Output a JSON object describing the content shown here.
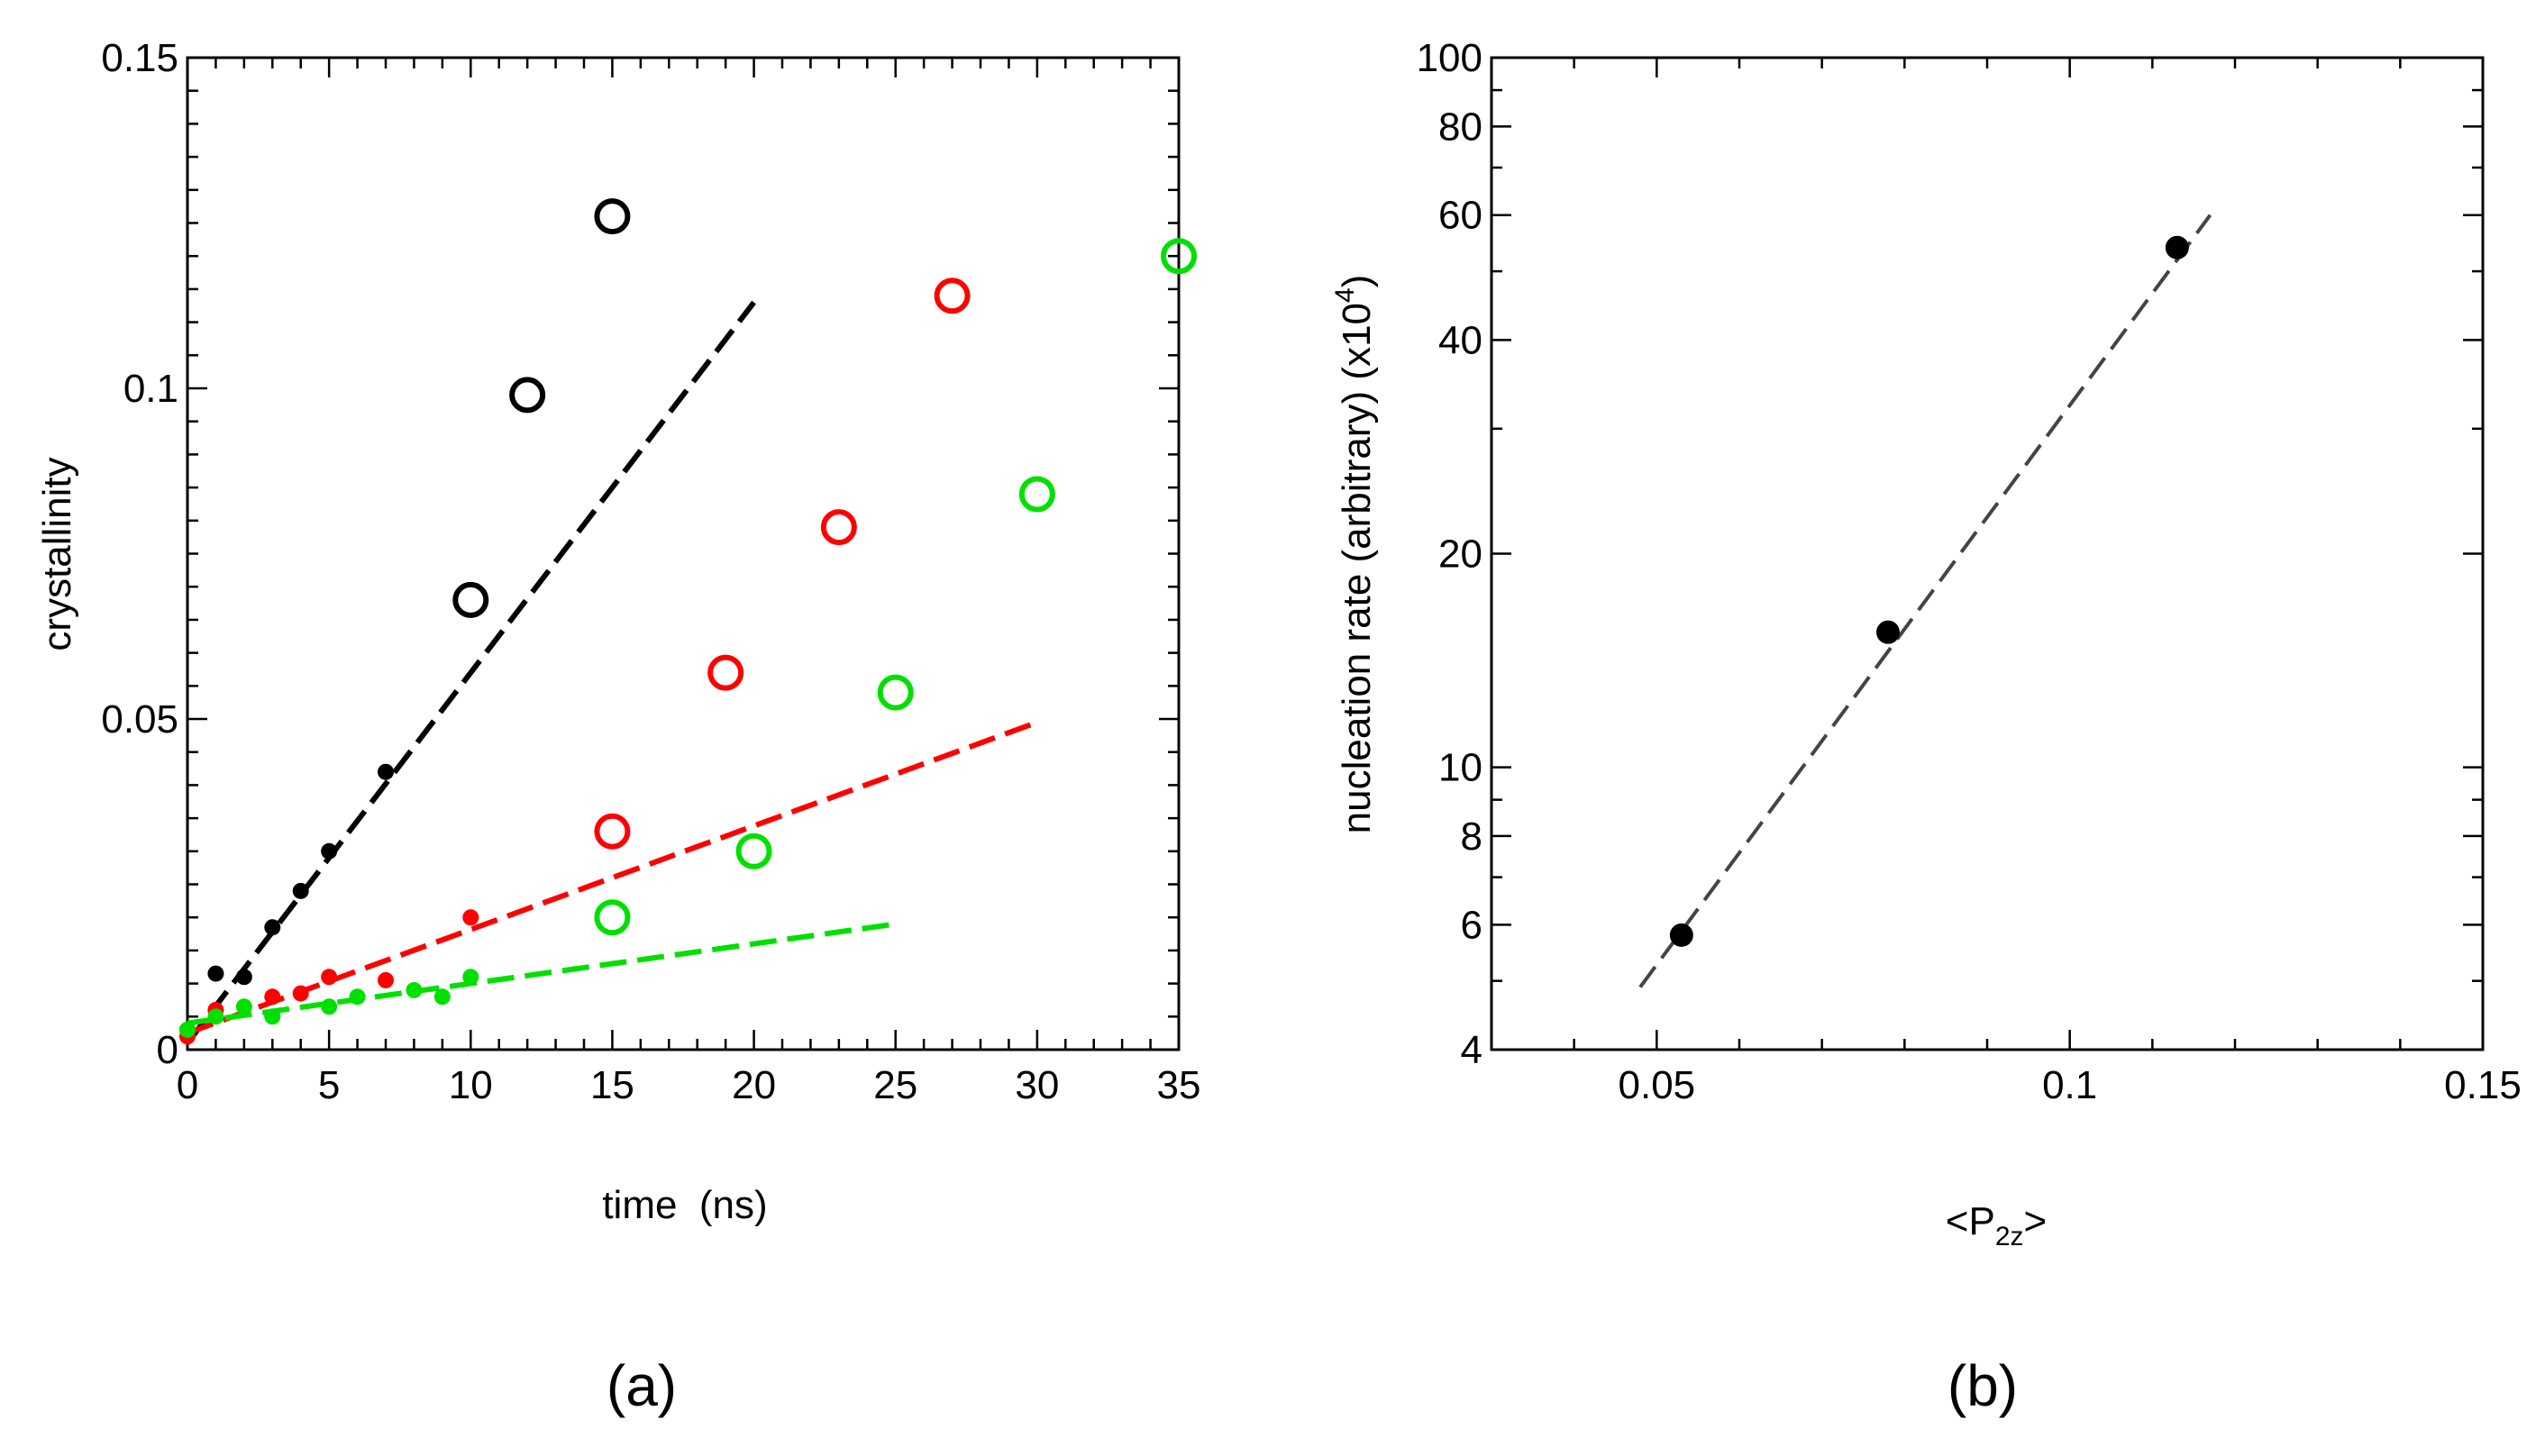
{
  "chart_data": [
    {
      "type": "scatter",
      "panel_label": "(a)",
      "xlabel": "time  (ns)",
      "ylabel": "crystallinity",
      "xlim": [
        0,
        35
      ],
      "ylim": [
        0,
        0.15
      ],
      "x_ticks": [
        0,
        5,
        10,
        15,
        20,
        25,
        30,
        35
      ],
      "x_tick_labels": [
        "0",
        "5",
        "10",
        "15",
        "20",
        "25",
        "30",
        "35"
      ],
      "y_ticks": [
        0,
        0.05,
        0.1,
        0.15
      ],
      "y_tick_labels": [
        "0",
        "0.05",
        "0.1",
        "0.15"
      ],
      "series": [
        {
          "name": "black",
          "color": "#000000",
          "small_markers": {
            "x": [
              0,
              1,
              2,
              3,
              4,
              5,
              7
            ],
            "y": [
              0.003,
              0.0115,
              0.011,
              0.0185,
              0.024,
              0.03,
              0.042
            ]
          },
          "open_markers": {
            "x": [
              10,
              12,
              15
            ],
            "y": [
              0.068,
              0.099,
              0.126
            ]
          },
          "fit": {
            "x": [
              0,
              20
            ],
            "y": [
              0.001,
              0.113
            ]
          }
        },
        {
          "name": "red",
          "color": "#ff0000",
          "small_markers": {
            "x": [
              0,
              1,
              3,
              4,
              5,
              7,
              10
            ],
            "y": [
              0.002,
              0.006,
              0.008,
              0.0085,
              0.011,
              0.0105,
              0.02
            ]
          },
          "open_markers": {
            "x": [
              15,
              19,
              23,
              27
            ],
            "y": [
              0.033,
              0.057,
              0.079,
              0.114
            ]
          },
          "fit": {
            "x": [
              0,
              30
            ],
            "y": [
              0.0025,
              0.0495
            ]
          }
        },
        {
          "name": "green",
          "color": "#00e000",
          "small_markers": {
            "x": [
              0,
              1,
              2,
              3,
              5,
              6,
              8,
              9,
              10
            ],
            "y": [
              0.003,
              0.005,
              0.0065,
              0.005,
              0.0065,
              0.008,
              0.009,
              0.008,
              0.011
            ]
          },
          "open_markers": {
            "x": [
              15,
              20,
              25,
              30,
              35
            ],
            "y": [
              0.02,
              0.03,
              0.054,
              0.084,
              0.12
            ]
          },
          "fit": {
            "x": [
              0,
              25
            ],
            "y": [
              0.004,
              0.019
            ]
          }
        }
      ]
    },
    {
      "type": "scatter",
      "panel_label": "(b)",
      "xlabel_main": "<P",
      "xlabel_sub": "2z",
      "xlabel_end": ">",
      "ylabel_main": "nucleation rate (arbitrary) (x10",
      "ylabel_sup": "4",
      "ylabel_end": ")",
      "xlim": [
        0.03,
        0.15
      ],
      "ylim": [
        4,
        100
      ],
      "yscale": "log",
      "x_ticks": [
        0.05,
        0.1,
        0.15
      ],
      "x_tick_labels": [
        "0.05",
        "0.1",
        "0.15"
      ],
      "y_ticks": [
        4,
        6,
        8,
        10,
        20,
        40,
        60,
        80,
        100
      ],
      "y_tick_labels": [
        "4",
        "6",
        "8",
        "10",
        "20",
        "40",
        "60",
        "80",
        "100"
      ],
      "series": [
        {
          "name": "nucleation rate",
          "color": "#000000",
          "x": [
            0.053,
            0.078,
            0.113
          ],
          "y": [
            5.8,
            15.5,
            54
          ]
        }
      ],
      "fit": {
        "x": [
          0.048,
          0.117
        ],
        "y": [
          4.9,
          60
        ],
        "color": "#444444"
      }
    }
  ]
}
